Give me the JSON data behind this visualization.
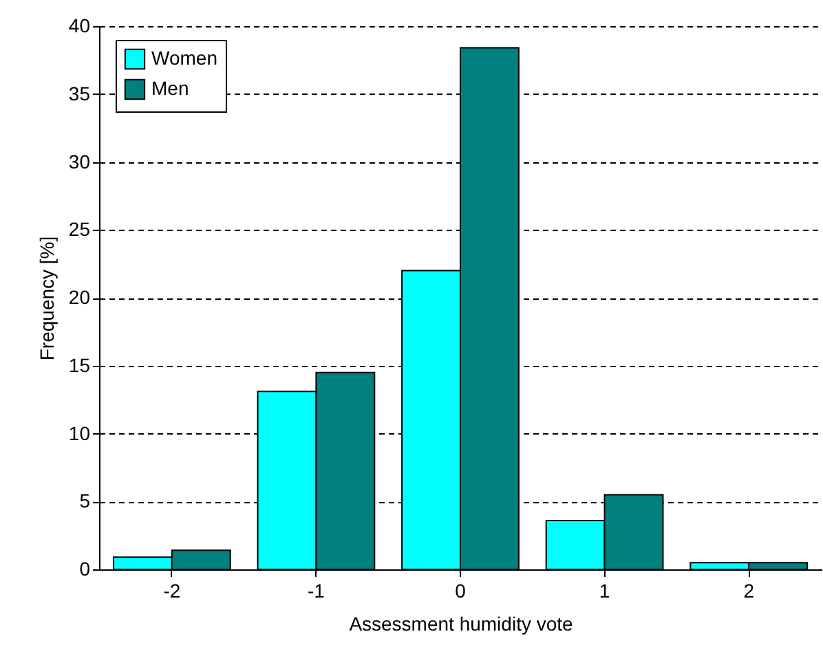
{
  "chart_data": {
    "type": "bar",
    "xlabel": "Assessment humidity vote",
    "ylabel": "Frequency [%]",
    "categories": [
      "-2",
      "-1",
      "0",
      "1",
      "2"
    ],
    "series": [
      {
        "name": "Women",
        "color": "#00ffff",
        "values": [
          0.9,
          13.1,
          22.0,
          3.6,
          0.5
        ]
      },
      {
        "name": "Men",
        "color": "#008080",
        "values": [
          1.4,
          14.5,
          38.4,
          5.5,
          0.5
        ]
      }
    ],
    "ylim": [
      0,
      40
    ],
    "yticks": [
      0,
      5,
      10,
      15,
      20,
      25,
      30,
      35,
      40
    ],
    "grid": "y",
    "legend": "top left"
  }
}
